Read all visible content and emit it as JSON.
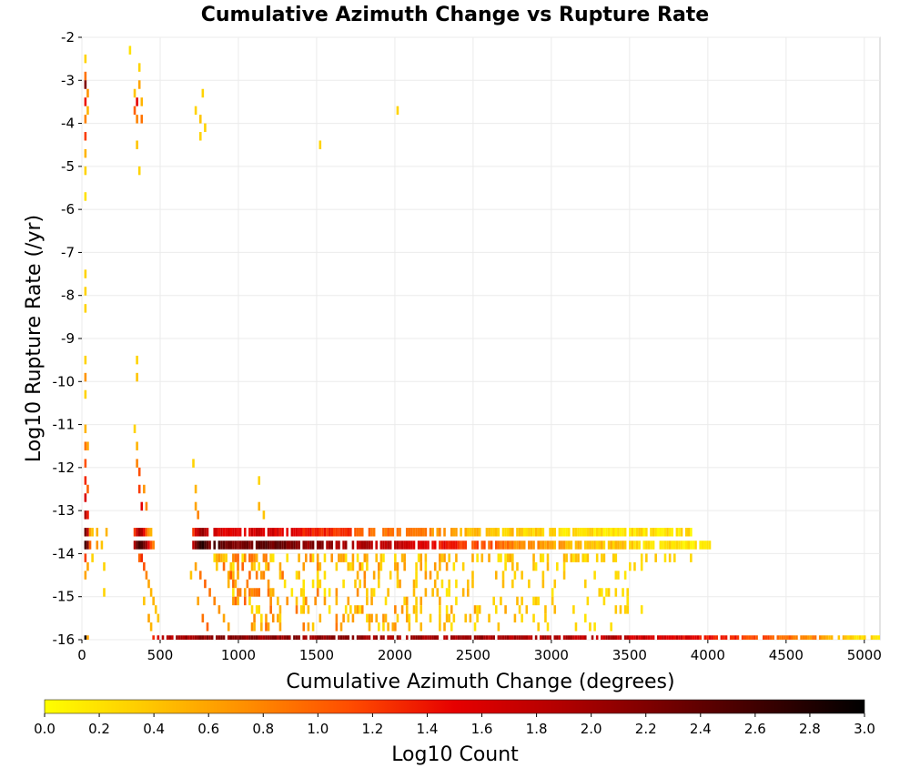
{
  "chart_data": {
    "type": "heatmap",
    "title": "Cumulative Azimuth Change vs Rupture Rate",
    "xlabel": "Cumulative Azimuth Change (degrees)",
    "ylabel": "Log10 Rupture Rate (/yr)",
    "xlim": [
      0,
      5100
    ],
    "ylim": [
      -16,
      -2
    ],
    "x_ticks": [
      0,
      500,
      1000,
      1500,
      2000,
      2500,
      3000,
      3500,
      4000,
      4500,
      5000
    ],
    "y_ticks": [
      -2,
      -3,
      -4,
      -5,
      -6,
      -7,
      -8,
      -9,
      -10,
      -11,
      -12,
      -13,
      -14,
      -15,
      -16
    ],
    "grid": true,
    "colorbar": {
      "label": "Log10 Count",
      "range": [
        0.0,
        3.0
      ],
      "ticks": [
        "0.0",
        "0.2",
        "0.4",
        "0.6",
        "0.8",
        "1.0",
        "1.2",
        "1.4",
        "1.6",
        "1.8",
        "2.0",
        "2.2",
        "2.4",
        "2.6",
        "2.8",
        "3.0"
      ],
      "colors": [
        "#ffff00",
        "#ffc800",
        "#ff8c00",
        "#ff4b00",
        "#e60000",
        "#b40000",
        "#780000",
        "#3c0000",
        "#000000"
      ],
      "placement": "bottom"
    },
    "bin_size": {
      "x": 15,
      "y": 0.2
    },
    "cells": [
      [
        15,
        -2.5,
        0.3
      ],
      [
        15,
        -2.9,
        0.9
      ],
      [
        15,
        -3.1,
        2.2
      ],
      [
        15,
        -3.5,
        1.4
      ],
      [
        15,
        -3.9,
        0.8
      ],
      [
        15,
        -4.3,
        1.2
      ],
      [
        15,
        -4.7,
        0.5
      ],
      [
        15,
        -5.1,
        0.3
      ],
      [
        15,
        -5.7,
        0.2
      ],
      [
        15,
        -7.5,
        0.3
      ],
      [
        15,
        -7.9,
        0.3
      ],
      [
        15,
        -8.3,
        0.3
      ],
      [
        15,
        -9.5,
        0.3
      ],
      [
        15,
        -9.9,
        0.7
      ],
      [
        15,
        -10.3,
        0.3
      ],
      [
        15,
        -11.1,
        0.5
      ],
      [
        15,
        -11.5,
        0.9
      ],
      [
        15,
        -11.9,
        1.1
      ],
      [
        15,
        -12.3,
        1.3
      ],
      [
        15,
        -12.7,
        1.6
      ],
      [
        15,
        -13.1,
        1.9
      ],
      [
        15,
        -13.5,
        2.3
      ],
      [
        15,
        -13.8,
        2.6
      ],
      [
        15,
        -14.1,
        1.2
      ],
      [
        15,
        -14.5,
        0.6
      ],
      [
        15,
        -16,
        2.9
      ],
      [
        30,
        -3.3,
        0.7
      ],
      [
        30,
        -3.7,
        0.5
      ],
      [
        30,
        -11.5,
        0.6
      ],
      [
        30,
        -12.5,
        1.0
      ],
      [
        30,
        -13.1,
        1.4
      ],
      [
        30,
        -13.5,
        1.8
      ],
      [
        30,
        -13.8,
        2.2
      ],
      [
        30,
        -14.3,
        0.6
      ],
      [
        30,
        -16,
        0.6
      ],
      [
        45,
        -13.5,
        0.6
      ],
      [
        45,
        -13.8,
        1.0
      ],
      [
        60,
        -13.5,
        0.4
      ],
      [
        60,
        -14.1,
        0.3
      ],
      [
        90,
        -13.5,
        0.5
      ],
      [
        90,
        -13.8,
        0.7
      ],
      [
        120,
        -13.8,
        0.4
      ],
      [
        135,
        -14.3,
        0.3
      ],
      [
        135,
        -14.9,
        0.3
      ],
      [
        150,
        -13.5,
        0.5
      ],
      [
        300,
        -2.3,
        0.2
      ],
      [
        330,
        -3.3,
        0.4
      ],
      [
        330,
        -3.7,
        1.0
      ],
      [
        345,
        -3.5,
        1.5
      ],
      [
        345,
        -3.9,
        0.8
      ],
      [
        345,
        -4.5,
        0.4
      ],
      [
        360,
        -2.7,
        0.3
      ],
      [
        360,
        -3.1,
        0.6
      ],
      [
        360,
        -5.1,
        0.3
      ],
      [
        375,
        -3.5,
        0.5
      ],
      [
        375,
        -3.9,
        0.9
      ],
      [
        345,
        -9.5,
        0.3
      ],
      [
        345,
        -9.9,
        0.4
      ],
      [
        330,
        -11.1,
        0.3
      ],
      [
        345,
        -11.5,
        0.5
      ],
      [
        345,
        -11.9,
        0.8
      ],
      [
        360,
        -12.1,
        1.1
      ],
      [
        360,
        -12.5,
        1.2
      ],
      [
        375,
        -12.9,
        1.5
      ],
      [
        390,
        -12.5,
        0.7
      ],
      [
        405,
        -12.9,
        0.8
      ],
      [
        330,
        -13.5,
        1.2
      ],
      [
        345,
        -13.5,
        1.7
      ],
      [
        360,
        -13.5,
        2.0
      ],
      [
        375,
        -13.5,
        1.9
      ],
      [
        390,
        -13.5,
        1.5
      ],
      [
        405,
        -13.5,
        1.0
      ],
      [
        420,
        -13.5,
        0.7
      ],
      [
        435,
        -13.5,
        0.5
      ],
      [
        330,
        -13.8,
        1.9
      ],
      [
        345,
        -13.8,
        2.4
      ],
      [
        360,
        -13.8,
        2.6
      ],
      [
        375,
        -13.8,
        2.5
      ],
      [
        390,
        -13.8,
        2.3
      ],
      [
        405,
        -13.8,
        2.0
      ],
      [
        420,
        -13.8,
        1.5
      ],
      [
        435,
        -13.8,
        1.1
      ],
      [
        450,
        -13.8,
        0.8
      ],
      [
        360,
        -14.1,
        1.0
      ],
      [
        375,
        -14.1,
        1.3
      ],
      [
        390,
        -14.3,
        1.1
      ],
      [
        405,
        -14.5,
        0.8
      ],
      [
        420,
        -14.7,
        0.6
      ],
      [
        435,
        -14.9,
        0.5
      ],
      [
        450,
        -15.1,
        0.5
      ],
      [
        465,
        -15.3,
        0.4
      ],
      [
        480,
        -15.5,
        0.4
      ],
      [
        390,
        -15.1,
        0.4
      ],
      [
        420,
        -15.5,
        0.6
      ],
      [
        435,
        -15.7,
        0.5
      ],
      [
        450,
        -16,
        1.3
      ],
      [
        480,
        -16,
        1.6
      ],
      [
        720,
        -3.7,
        0.3
      ],
      [
        750,
        -3.9,
        0.4
      ],
      [
        750,
        -4.3,
        0.3
      ],
      [
        765,
        -3.3,
        0.3
      ],
      [
        780,
        -4.1,
        0.3
      ],
      [
        705,
        -11.9,
        0.3
      ],
      [
        720,
        -12.9,
        0.6
      ],
      [
        720,
        -12.5,
        0.5
      ],
      [
        735,
        -13.1,
        0.8
      ],
      [
        705,
        -13.5,
        1.2
      ],
      [
        720,
        -13.5,
        1.6
      ],
      [
        735,
        -13.5,
        1.8
      ],
      [
        750,
        -13.5,
        2.0
      ],
      [
        765,
        -13.5,
        2.1
      ],
      [
        780,
        -13.5,
        1.9
      ],
      [
        795,
        -13.5,
        1.7
      ],
      [
        705,
        -13.8,
        1.8
      ],
      [
        720,
        -13.8,
        2.2
      ],
      [
        735,
        -13.8,
        2.5
      ],
      [
        750,
        -13.8,
        2.7
      ],
      [
        765,
        -13.8,
        2.8
      ],
      [
        780,
        -13.8,
        2.6
      ],
      [
        795,
        -13.8,
        2.4
      ],
      [
        810,
        -13.8,
        2.2
      ],
      [
        720,
        -14.3,
        0.6
      ],
      [
        750,
        -14.5,
        0.9
      ],
      [
        780,
        -14.7,
        1.0
      ],
      [
        810,
        -14.9,
        0.9
      ],
      [
        840,
        -15.1,
        0.8
      ],
      [
        870,
        -15.3,
        0.7
      ],
      [
        900,
        -15.5,
        0.6
      ],
      [
        930,
        -15.7,
        0.6
      ],
      [
        690,
        -14.5,
        0.4
      ],
      [
        735,
        -15.1,
        0.6
      ],
      [
        765,
        -15.5,
        0.9
      ],
      [
        795,
        -15.7,
        1.0
      ],
      [
        1125,
        -12.3,
        0.3
      ],
      [
        1125,
        -12.9,
        0.5
      ],
      [
        1155,
        -13.1,
        0.4
      ],
      [
        1515,
        -4.5,
        0.3
      ],
      [
        2010,
        -3.7,
        0.3
      ]
    ],
    "band_13_8": [
      [
        840,
        2.4
      ],
      [
        900,
        2.4
      ],
      [
        960,
        2.3
      ],
      [
        1020,
        2.3
      ],
      [
        1080,
        2.3
      ],
      [
        1140,
        2.5
      ],
      [
        1200,
        2.4
      ],
      [
        1260,
        2.3
      ],
      [
        1320,
        2.2
      ],
      [
        1380,
        2.2
      ],
      [
        1440,
        2.1
      ],
      [
        1500,
        2.1
      ],
      [
        1560,
        2.1
      ],
      [
        1620,
        2.0
      ],
      [
        1680,
        2.0
      ],
      [
        1740,
        1.9
      ],
      [
        1800,
        1.9
      ],
      [
        1860,
        1.9
      ],
      [
        1920,
        1.8
      ],
      [
        1980,
        1.8
      ],
      [
        2040,
        1.7
      ],
      [
        2100,
        1.6
      ],
      [
        2160,
        1.6
      ],
      [
        2220,
        1.5
      ],
      [
        2280,
        1.4
      ],
      [
        2340,
        1.4
      ],
      [
        2400,
        1.3
      ],
      [
        2460,
        1.2
      ],
      [
        2520,
        1.1
      ],
      [
        2580,
        1.0
      ],
      [
        2640,
        1.0
      ],
      [
        2700,
        0.9
      ],
      [
        2760,
        0.8
      ],
      [
        2820,
        0.8
      ],
      [
        2880,
        0.7
      ],
      [
        2940,
        0.7
      ],
      [
        3000,
        0.6
      ],
      [
        3060,
        0.6
      ],
      [
        3120,
        0.5
      ],
      [
        3180,
        0.5
      ],
      [
        3240,
        0.5
      ],
      [
        3300,
        0.4
      ],
      [
        3360,
        0.4
      ],
      [
        3420,
        0.4
      ],
      [
        3480,
        0.3
      ],
      [
        3540,
        0.3
      ],
      [
        3600,
        0.3
      ],
      [
        3660,
        0.3
      ],
      [
        3720,
        0.3
      ],
      [
        3780,
        0.2
      ],
      [
        3840,
        0.2
      ],
      [
        3900,
        0.2
      ],
      [
        3960,
        0.2
      ]
    ],
    "band_13_5": [
      [
        840,
        1.6
      ],
      [
        900,
        1.6
      ],
      [
        960,
        1.5
      ],
      [
        1020,
        1.5
      ],
      [
        1080,
        1.6
      ],
      [
        1140,
        1.7
      ],
      [
        1200,
        1.6
      ],
      [
        1260,
        1.5
      ],
      [
        1320,
        1.5
      ],
      [
        1380,
        1.4
      ],
      [
        1440,
        1.4
      ],
      [
        1500,
        1.3
      ],
      [
        1560,
        1.3
      ],
      [
        1620,
        1.2
      ],
      [
        1680,
        1.2
      ],
      [
        1740,
        1.1
      ],
      [
        1800,
        1.1
      ],
      [
        1860,
        1.0
      ],
      [
        1920,
        1.0
      ],
      [
        1980,
        0.9
      ],
      [
        2040,
        0.9
      ],
      [
        2100,
        0.8
      ],
      [
        2160,
        0.8
      ],
      [
        2220,
        0.7
      ],
      [
        2280,
        0.7
      ],
      [
        2340,
        0.6
      ],
      [
        2400,
        0.6
      ],
      [
        2460,
        0.5
      ],
      [
        2520,
        0.5
      ],
      [
        2580,
        0.5
      ],
      [
        2640,
        0.4
      ],
      [
        2700,
        0.4
      ],
      [
        2760,
        0.4
      ],
      [
        2820,
        0.3
      ],
      [
        2880,
        0.3
      ],
      [
        2940,
        0.3
      ],
      [
        3000,
        0.3
      ],
      [
        3060,
        0.2
      ],
      [
        3180,
        0.2
      ],
      [
        3300,
        0.2
      ],
      [
        3480,
        0.2
      ],
      [
        3600,
        0.2
      ],
      [
        3720,
        0.2
      ],
      [
        3840,
        0.2
      ]
    ],
    "band_16": [
      [
        510,
        1.8
      ],
      [
        570,
        1.9
      ],
      [
        630,
        2.0
      ],
      [
        690,
        2.0
      ],
      [
        750,
        2.1
      ],
      [
        810,
        2.1
      ],
      [
        870,
        2.1
      ],
      [
        930,
        2.1
      ],
      [
        990,
        2.1
      ],
      [
        1050,
        2.1
      ],
      [
        1110,
        2.1
      ],
      [
        1170,
        2.1
      ],
      [
        1230,
        2.1
      ],
      [
        1290,
        2.1
      ],
      [
        1350,
        2.1
      ],
      [
        1410,
        2.1
      ],
      [
        1470,
        2.1
      ],
      [
        1530,
        2.1
      ],
      [
        1590,
        2.1
      ],
      [
        1650,
        2.1
      ],
      [
        1710,
        2.1
      ],
      [
        1770,
        2.0
      ],
      [
        1830,
        2.0
      ],
      [
        1890,
        2.0
      ],
      [
        1950,
        2.0
      ],
      [
        2010,
        2.0
      ],
      [
        2070,
        2.0
      ],
      [
        2130,
        2.0
      ],
      [
        2190,
        2.0
      ],
      [
        2250,
        2.0
      ],
      [
        2310,
        2.0
      ],
      [
        2370,
        2.0
      ],
      [
        2430,
        2.0
      ],
      [
        2490,
        2.0
      ],
      [
        2550,
        2.0
      ],
      [
        2610,
        1.9
      ],
      [
        2670,
        1.9
      ],
      [
        2730,
        1.9
      ],
      [
        2790,
        1.9
      ],
      [
        2850,
        1.9
      ],
      [
        2910,
        1.9
      ],
      [
        2970,
        1.9
      ],
      [
        3030,
        1.9
      ],
      [
        3090,
        1.8
      ],
      [
        3150,
        1.8
      ],
      [
        3210,
        1.8
      ],
      [
        3270,
        1.8
      ],
      [
        3330,
        1.8
      ],
      [
        3390,
        1.8
      ],
      [
        3450,
        1.8
      ],
      [
        3510,
        1.7
      ],
      [
        3570,
        1.7
      ],
      [
        3630,
        1.7
      ],
      [
        3690,
        1.6
      ],
      [
        3750,
        1.6
      ],
      [
        3810,
        1.6
      ],
      [
        3870,
        1.5
      ],
      [
        3930,
        1.5
      ],
      [
        3990,
        1.4
      ],
      [
        4050,
        1.4
      ],
      [
        4110,
        1.3
      ],
      [
        4170,
        1.3
      ],
      [
        4230,
        1.2
      ],
      [
        4290,
        1.2
      ],
      [
        4350,
        1.1
      ],
      [
        4410,
        1.0
      ],
      [
        4470,
        1.0
      ],
      [
        4530,
        0.9
      ],
      [
        4590,
        0.8
      ],
      [
        4650,
        0.8
      ],
      [
        4710,
        0.7
      ],
      [
        4770,
        0.6
      ],
      [
        4830,
        0.5
      ],
      [
        4890,
        0.4
      ],
      [
        4950,
        0.3
      ],
      [
        5010,
        0.3
      ],
      [
        5070,
        0.2
      ]
    ],
    "sparse_rows": [
      {
        "y": -14.1,
        "xmin": 840,
        "xmax": 3960,
        "density": 0.55
      },
      {
        "y": -14.3,
        "xmin": 840,
        "xmax": 3780,
        "density": 0.35
      },
      {
        "y": -14.5,
        "xmin": 900,
        "xmax": 3540,
        "density": 0.3
      },
      {
        "y": -14.7,
        "xmin": 900,
        "xmax": 3360,
        "density": 0.3
      },
      {
        "y": -14.9,
        "xmin": 960,
        "xmax": 3600,
        "density": 0.28
      },
      {
        "y": -15.1,
        "xmin": 960,
        "xmax": 3540,
        "density": 0.28
      },
      {
        "y": -15.3,
        "xmin": 1020,
        "xmax": 3720,
        "density": 0.3
      },
      {
        "y": -15.5,
        "xmin": 1020,
        "xmax": 3300,
        "density": 0.25
      },
      {
        "y": -15.7,
        "xmin": 1080,
        "xmax": 3480,
        "density": 0.22
      }
    ]
  }
}
